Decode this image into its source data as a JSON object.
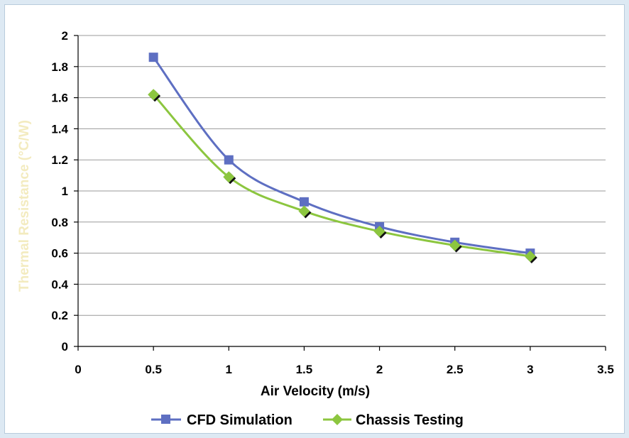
{
  "chart_data": {
    "type": "line",
    "title": "",
    "xlabel": "Air Velocity (m/s)",
    "ylabel": "Thermal Resistance (°C/W)",
    "xlim": [
      0,
      3.5
    ],
    "ylim": [
      0,
      2
    ],
    "x_ticks": [
      "0",
      "0.5",
      "1",
      "1.5",
      "2",
      "2.5",
      "3",
      "3.5"
    ],
    "y_ticks": [
      "0",
      "0.2",
      "0.4",
      "0.6",
      "0.8",
      "1",
      "1.2",
      "1.4",
      "1.6",
      "1.8",
      "2"
    ],
    "grid": "horizontal",
    "legend_position": "bottom",
    "x": [
      0.5,
      1,
      1.5,
      2,
      2.5,
      3
    ],
    "series": [
      {
        "name": "CFD Simulation",
        "values": [
          1.86,
          1.2,
          0.93,
          0.77,
          0.67,
          0.6
        ],
        "color": "#5e6fc2",
        "marker": "square"
      },
      {
        "name": "Chassis Testing",
        "values": [
          1.62,
          1.09,
          0.87,
          0.74,
          0.65,
          0.58
        ],
        "color": "#8cc63f",
        "marker": "diamond"
      }
    ],
    "colors": {
      "ylabel": "#f3ebbf",
      "grid": "#9a9a9a",
      "axis": "#000000"
    }
  }
}
